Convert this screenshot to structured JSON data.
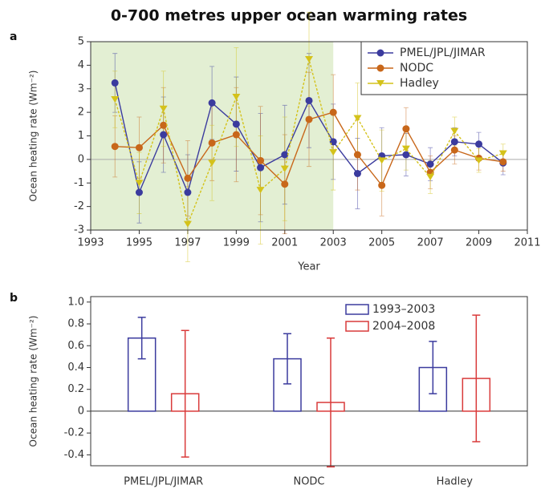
{
  "chart_data": [
    {
      "type": "line",
      "panel": "a",
      "title": "0-700 metres upper ocean warming rates",
      "x_label": "Year",
      "y_label": "Ocean heating rate (Wm⁻²)",
      "xlim": [
        1993,
        2011
      ],
      "xticks": [
        1993,
        1995,
        1997,
        1999,
        2001,
        2003,
        2005,
        2007,
        2009,
        2011
      ],
      "ylim": [
        -3,
        5
      ],
      "yticks": [
        -3,
        -2,
        -1,
        0,
        1,
        2,
        3,
        4,
        5
      ],
      "shaded_range": [
        1993,
        2003
      ],
      "shade_color": "#e3efd3",
      "legend": "upper right",
      "x": [
        1994,
        1995,
        1996,
        1997,
        1998,
        1999,
        2000,
        2001,
        2002,
        2003,
        2004,
        2005,
        2006,
        2007,
        2008,
        2009,
        2010
      ],
      "series": [
        {
          "name": "PMEL/JPL/JIMAR",
          "color": "#3b3b9e",
          "marker": "circle",
          "values": [
            3.25,
            -1.4,
            1.05,
            -1.4,
            2.4,
            1.5,
            -0.35,
            0.2,
            2.5,
            0.75,
            -0.6,
            0.15,
            0.2,
            -0.2,
            0.75,
            0.65,
            -0.15
          ],
          "errors": [
            1.25,
            1.3,
            1.6,
            1.6,
            1.55,
            2.0,
            2.3,
            2.1,
            2.0,
            1.6,
            1.5,
            1.2,
            0.9,
            0.7,
            0.6,
            0.5,
            0.5
          ]
        },
        {
          "name": "NODC",
          "color": "#c8671a",
          "marker": "circle",
          "values": [
            0.55,
            0.5,
            1.45,
            -0.8,
            0.7,
            1.05,
            -0.05,
            -1.05,
            1.7,
            2.0,
            0.2,
            -1.1,
            1.3,
            -0.55,
            0.4,
            0.05,
            -0.1
          ],
          "errors": [
            1.3,
            1.3,
            1.6,
            1.6,
            1.6,
            2.0,
            2.3,
            2.1,
            2.0,
            1.6,
            1.5,
            1.3,
            0.9,
            0.7,
            0.6,
            0.5,
            0.4
          ]
        },
        {
          "name": "Hadley",
          "color": "#d4c21a",
          "marker": "triangle",
          "values": [
            2.55,
            -1.0,
            2.15,
            -2.75,
            -0.15,
            2.65,
            -1.3,
            -0.4,
            4.25,
            0.3,
            1.75,
            -0.05,
            0.45,
            -0.75,
            1.2,
            -0.05,
            0.25
          ],
          "errors": [
            1.2,
            1.3,
            1.6,
            1.6,
            1.6,
            2.1,
            2.3,
            2.2,
            2.0,
            1.6,
            1.5,
            1.3,
            0.9,
            0.7,
            0.6,
            0.5,
            0.4
          ]
        }
      ]
    },
    {
      "type": "bar",
      "panel": "b",
      "y_label": "Ocean heating rate (Wm⁻²)",
      "categories": [
        "PMEL/JPL/JIMAR",
        "NODC",
        "Hadley"
      ],
      "ylim": [
        -0.5,
        1.05
      ],
      "yticks": [
        -0.4,
        -0.2,
        0,
        0.2,
        0.4,
        0.6,
        0.8,
        {
          "value": 1,
          "label": "1.0"
        }
      ],
      "legend": "upper right",
      "series": [
        {
          "name": "1993–2003",
          "color": "#3b3b9e",
          "values": [
            0.67,
            0.48,
            0.4
          ],
          "errors": [
            0.19,
            0.23,
            0.24
          ]
        },
        {
          "name": "2004–2008",
          "color": "#d93a3a",
          "values": [
            0.16,
            0.08,
            0.3
          ],
          "errors": [
            0.58,
            0.59,
            0.58
          ]
        }
      ]
    }
  ]
}
